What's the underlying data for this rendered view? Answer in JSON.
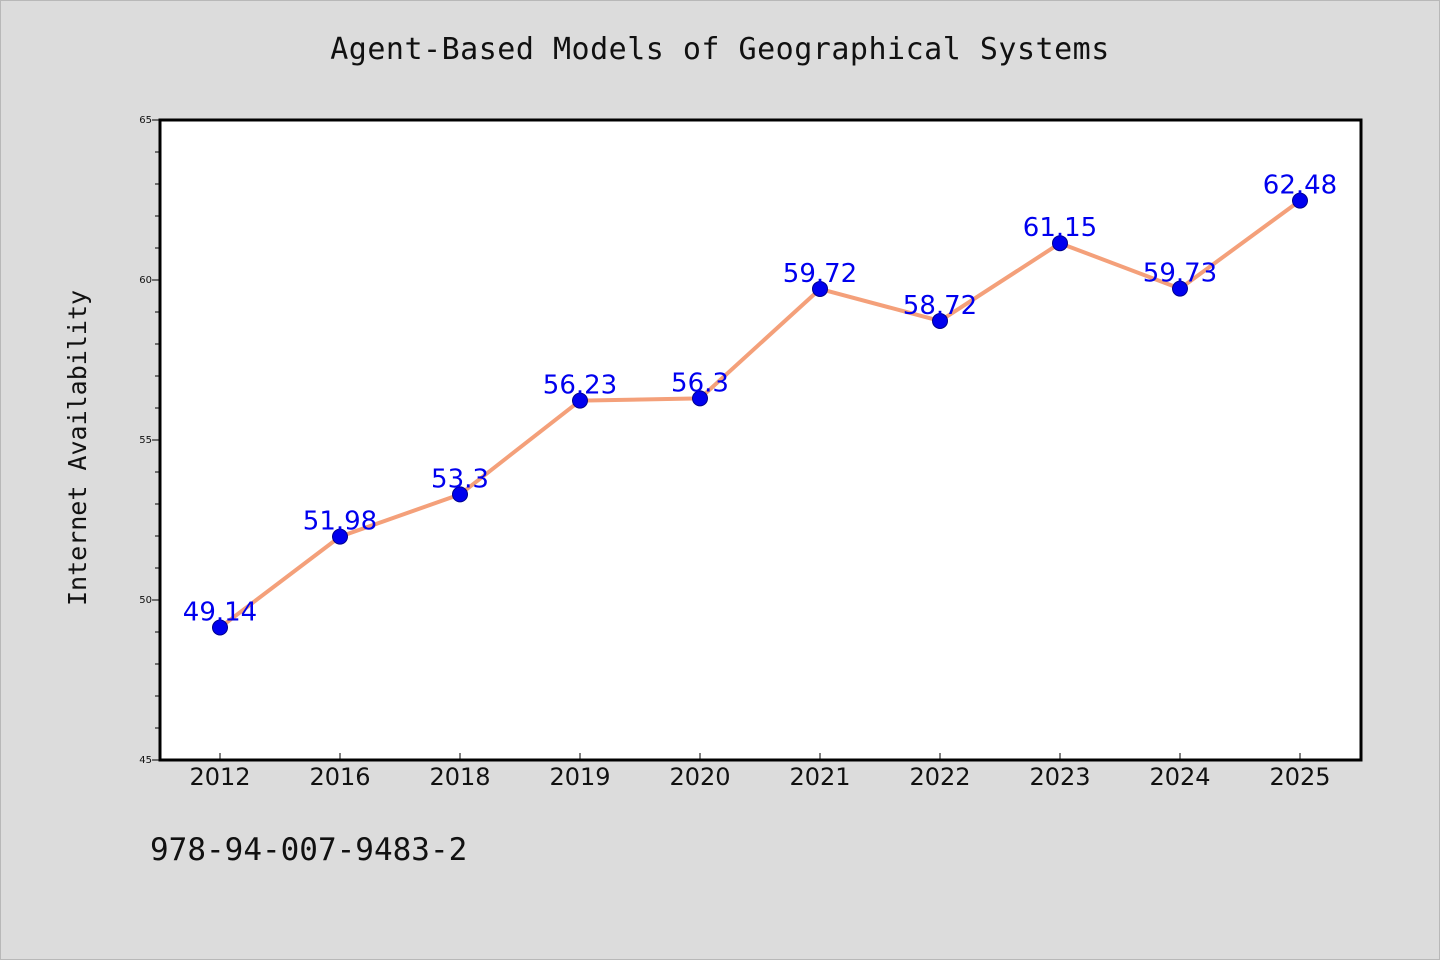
{
  "title": "Agent-Based Models of Geographical Systems",
  "footer": "978-94-007-9483-2",
  "chart_data": {
    "type": "line",
    "title": "Agent-Based Models of Geographical Systems",
    "xlabel": "",
    "ylabel": "Internet Availability",
    "categories": [
      "2012",
      "2016",
      "2018",
      "2019",
      "2020",
      "2021",
      "2022",
      "2023",
      "2024",
      "2025"
    ],
    "values": [
      49.14,
      51.98,
      53.3,
      56.23,
      56.3,
      59.72,
      58.72,
      61.15,
      59.73,
      62.48
    ],
    "data_labels": [
      "49.14",
      "51.98",
      "53.3",
      "56.23",
      "56.3",
      "59.72",
      "58.72",
      "61.15",
      "59.73",
      "62.48"
    ],
    "ylim": [
      45,
      65
    ],
    "yticks": [
      45,
      50,
      55,
      60,
      65
    ],
    "grid": false,
    "line_color": "#f4a07a",
    "marker_color": "#0000ee",
    "label_color": "#0000ee"
  }
}
